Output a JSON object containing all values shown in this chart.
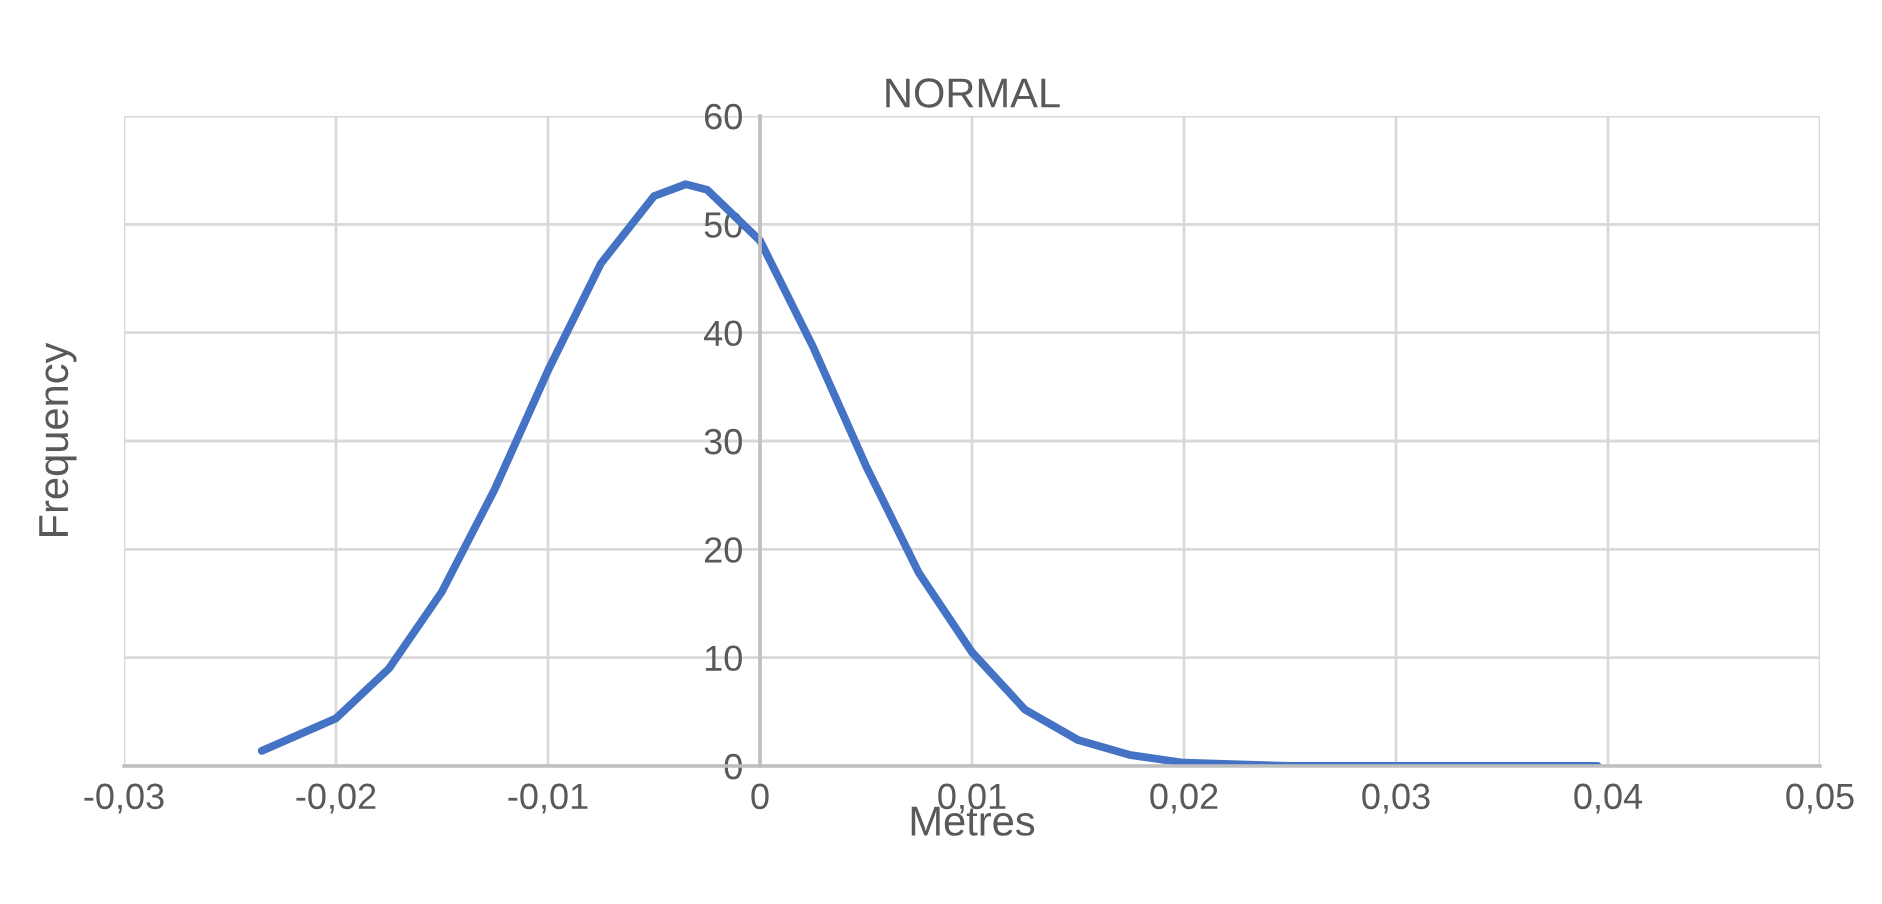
{
  "chart_data": {
    "type": "line",
    "title": "NORMAL",
    "xlabel": "Metres",
    "ylabel": "Frequency",
    "series": [
      {
        "color": "#4472c4",
        "x": [
          -0.0235,
          -0.02,
          -0.0175,
          -0.015,
          -0.0125,
          -0.01,
          -0.0075,
          -0.005,
          -0.0035,
          -0.0025,
          0,
          0.0025,
          0.005,
          0.0075,
          0.01,
          0.0125,
          0.015,
          0.0175,
          0.02,
          0.025,
          0.03,
          0.035,
          0.0395
        ],
        "values": [
          1.4,
          4.4,
          9.0,
          16.1,
          25.6,
          36.5,
          46.4,
          52.6,
          53.7,
          53.2,
          48.5,
          38.7,
          27.7,
          17.8,
          10.5,
          5.2,
          2.4,
          1.0,
          0.3,
          0,
          0,
          0,
          0
        ]
      }
    ],
    "xlim": [
      -0.03,
      0.05
    ],
    "xticks": [
      {
        "value": -0.03,
        "label": "-0,03"
      },
      {
        "value": -0.02,
        "label": "-0,02"
      },
      {
        "value": -0.01,
        "label": "-0,01"
      },
      {
        "value": 0,
        "label": "0"
      },
      {
        "value": 0.01,
        "label": "0,01"
      },
      {
        "value": 0.02,
        "label": "0,02"
      },
      {
        "value": 0.03,
        "label": "0,03"
      },
      {
        "value": 0.04,
        "label": "0,04"
      },
      {
        "value": 0.05,
        "label": "0,05"
      }
    ],
    "ylim": [
      0,
      60
    ],
    "yticks": [
      0,
      10,
      20,
      30,
      40,
      50,
      60
    ],
    "grid": true,
    "marker": "none",
    "line_style": "solid",
    "legend": false
  }
}
